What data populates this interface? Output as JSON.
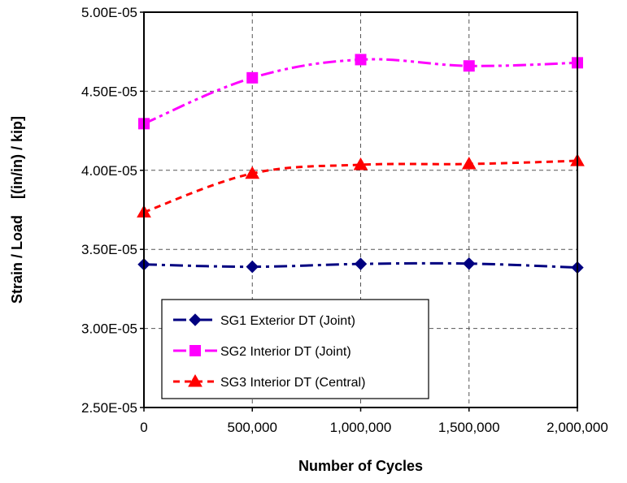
{
  "chart_data": {
    "type": "line",
    "xlabel": "Number of Cycles",
    "ylabel": "Strain / Load    [(in/in) / kip]",
    "xlim": [
      0,
      2000000
    ],
    "ylim": [
      2.5e-05,
      5e-05
    ],
    "x_ticks": [
      0,
      500000,
      1000000,
      1500000,
      2000000
    ],
    "x_tick_labels": [
      "0",
      "500,000",
      "1,000,000",
      "1,500,000",
      "2,000,000"
    ],
    "y_ticks": [
      2.5e-05,
      3e-05,
      3.5e-05,
      4e-05,
      4.5e-05,
      5e-05
    ],
    "y_tick_labels": [
      "2.50E-05",
      "3.00E-05",
      "3.50E-05",
      "4.00E-05",
      "4.50E-05",
      "5.00E-05"
    ],
    "grid": true,
    "legend_position": "bottom-left",
    "x": [
      0,
      500000,
      1000000,
      1500000,
      2000000
    ],
    "series": [
      {
        "name": "SG1 Exterior DT (Joint)",
        "values": [
          3.405e-05,
          3.39e-05,
          3.408e-05,
          3.41e-05,
          3.385e-05
        ],
        "color": "#000080",
        "marker": "diamond",
        "dash": "dash-dot"
      },
      {
        "name": "SG2 Interior DT (Joint)",
        "values": [
          4.295e-05,
          4.585e-05,
          4.7e-05,
          4.66e-05,
          4.68e-05
        ],
        "color": "#ff00ff",
        "marker": "square",
        "dash": "dash-dot-dot"
      },
      {
        "name": "SG3 Interior DT (Central)",
        "values": [
          3.735e-05,
          3.98e-05,
          4.035e-05,
          4.04e-05,
          4.06e-05
        ],
        "color": "#ff0000",
        "marker": "triangle",
        "dash": "dashed"
      }
    ]
  }
}
